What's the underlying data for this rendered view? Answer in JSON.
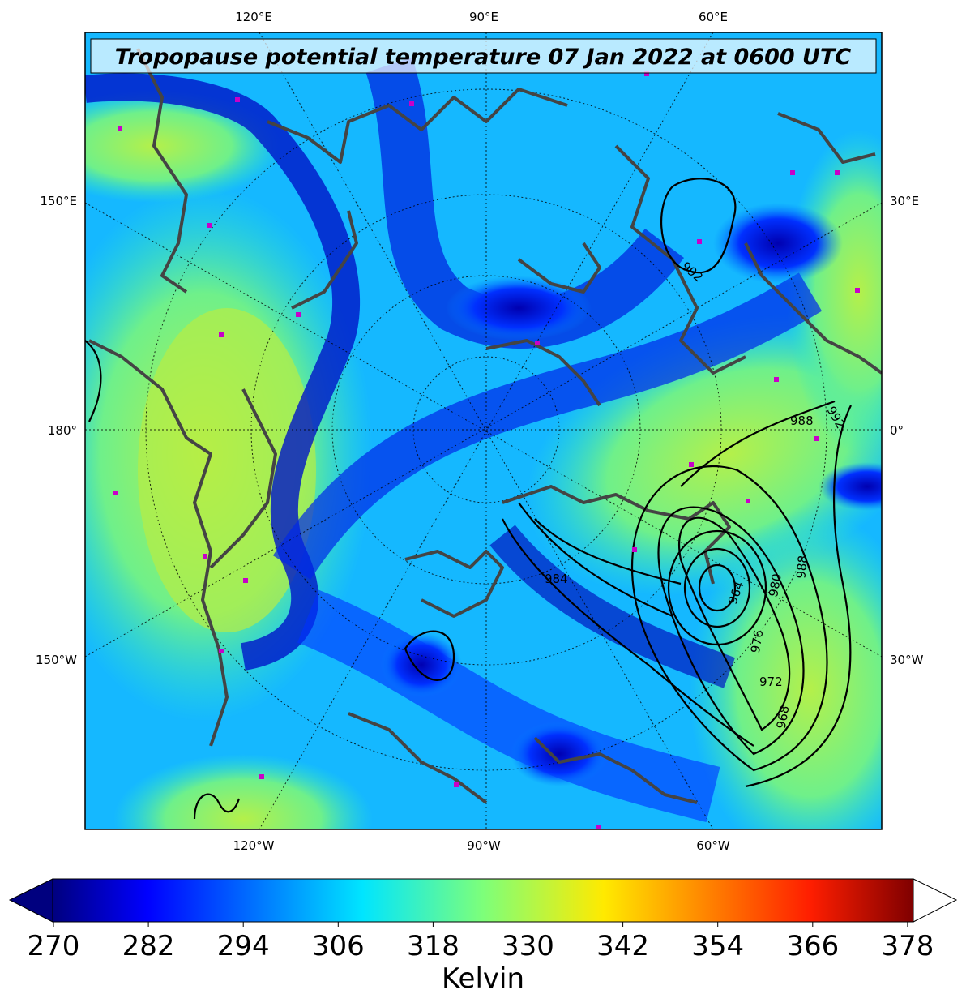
{
  "title": "Tropopause potential temperature 07 Jan 2022 at 0600 UTC",
  "map": {
    "top_labels": [
      "120°E",
      "90°E",
      "60°E"
    ],
    "left_labels": [
      "150°E",
      "180°",
      "150°W"
    ],
    "right_labels": [
      "30°E",
      "0°",
      "30°W"
    ],
    "bottom_labels": [
      "120°W",
      "90°W",
      "60°W"
    ],
    "contour_labels": [
      "992",
      "988",
      "992",
      "984",
      "964",
      "980",
      "988",
      "976",
      "972",
      "968"
    ]
  },
  "colorbar": {
    "ticks": [
      "270",
      "282",
      "294",
      "306",
      "318",
      "330",
      "342",
      "354",
      "366",
      "378"
    ],
    "label": "Kelvin"
  }
}
